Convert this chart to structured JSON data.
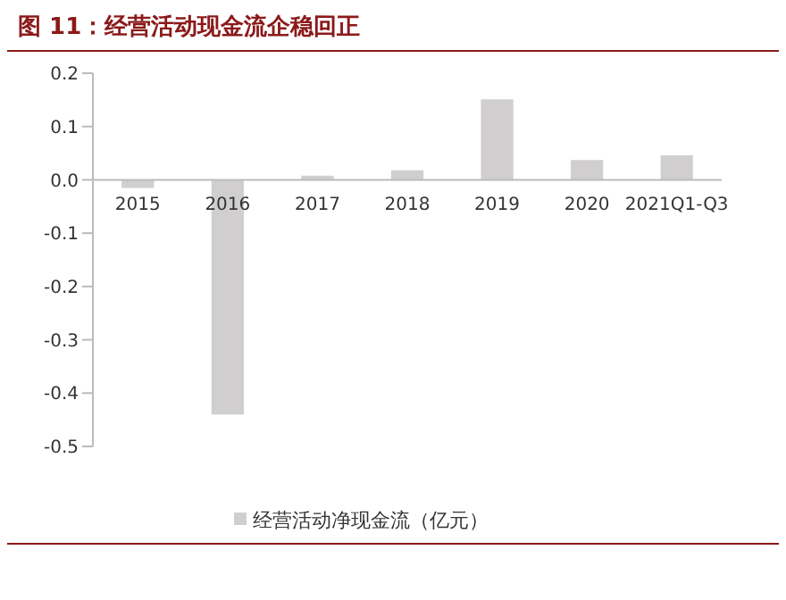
{
  "chart_data": {
    "type": "bar",
    "title": "图 11：经营活动现金流企稳回正",
    "categories": [
      "2015",
      "2016",
      "2017",
      "2018",
      "2019",
      "2020",
      "2021Q1-Q3"
    ],
    "series": [
      {
        "name": "经营活动净现金流（亿元）",
        "color": "#d0cecf",
        "values": [
          -0.015,
          -0.44,
          0.008,
          0.018,
          0.151,
          0.037,
          0.046
        ]
      }
    ],
    "ylim": [
      -0.5,
      0.2
    ],
    "yticks": [
      {
        "value": 0.2,
        "label": "0.2"
      },
      {
        "value": 0.1,
        "label": "0.1"
      },
      {
        "value": 0,
        "label": "0.0"
      },
      {
        "value": -0.1,
        "label": "-0.1"
      },
      {
        "value": -0.2,
        "label": "-0.2"
      },
      {
        "value": -0.3,
        "label": "-0.3"
      },
      {
        "value": -0.4,
        "label": "-0.4"
      },
      {
        "value": -0.5,
        "label": "-0.5"
      }
    ],
    "legend": "bottom"
  }
}
